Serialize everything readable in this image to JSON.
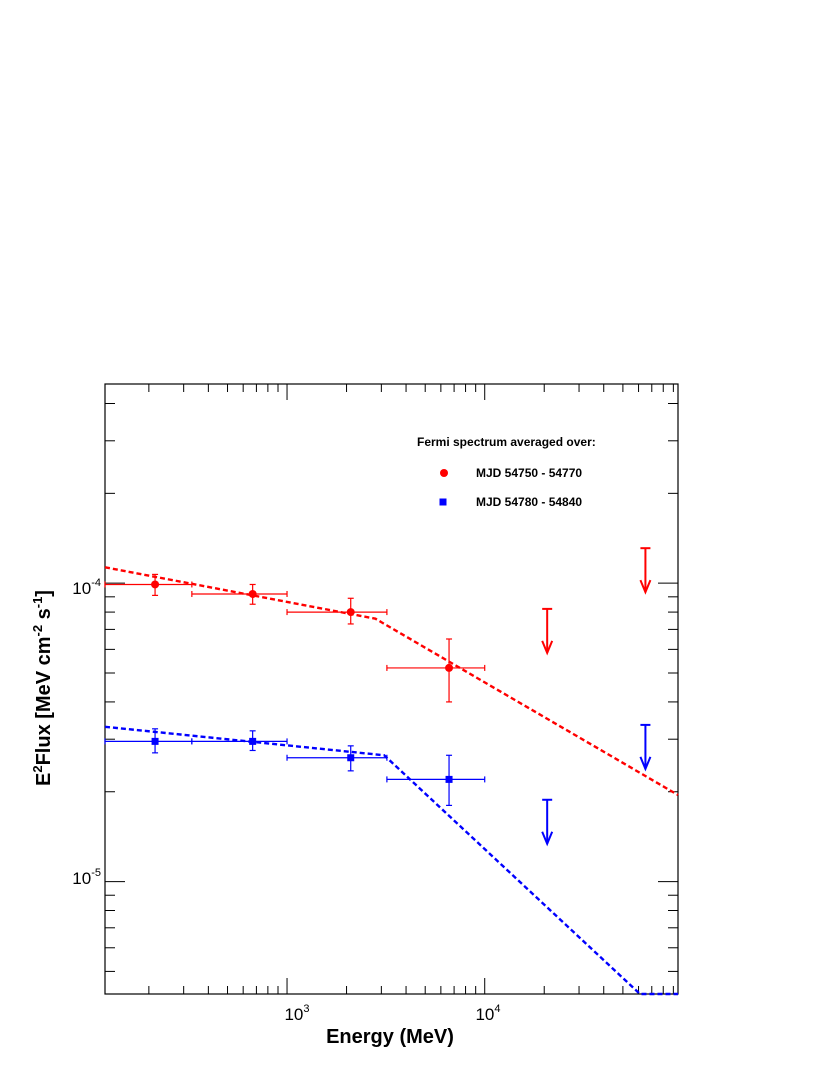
{
  "chart_data": {
    "type": "scatter",
    "xscale": "log",
    "yscale": "log",
    "xlim": [
      120,
      95000
    ],
    "ylim": [
      4.2e-06,
      0.000465
    ],
    "grid": false,
    "xlabel": "Energy (MeV)",
    "ylabel": {
      "base": "E",
      "sup1": "2",
      "mid": "Flux [MeV cm",
      "sup2": "-2",
      "mid2": " s",
      "sup3": "-1",
      "end": "]"
    },
    "x_ticks": [
      {
        "base": "10",
        "exp": "3"
      },
      {
        "base": "10",
        "exp": "4"
      }
    ],
    "y_ticks": [
      {
        "base": "10",
        "exp": "-4"
      },
      {
        "base": "10",
        "exp": "-5"
      }
    ],
    "legend": {
      "title": "Fermi spectrum averaged over:",
      "position": "top-right",
      "entries": [
        "MJD 54750 - 54770",
        "MJD 54780 - 54840"
      ]
    },
    "series": [
      {
        "name": "MJD 54750 - 54770",
        "color": "#ff0000",
        "marker": "circle",
        "points": [
          {
            "x": 215,
            "y": 9.9e-05,
            "xlo": 120,
            "xhi": 330,
            "ylo": 9.1e-05,
            "yhi": 0.000107
          },
          {
            "x": 670,
            "y": 9.2e-05,
            "xlo": 330,
            "xhi": 1000,
            "ylo": 8.5e-05,
            "yhi": 9.9e-05
          },
          {
            "x": 2100,
            "y": 8e-05,
            "xlo": 1000,
            "xhi": 3200,
            "ylo": 7.3e-05,
            "yhi": 8.9e-05
          },
          {
            "x": 6600,
            "y": 5.2e-05,
            "xlo": 3200,
            "xhi": 10000,
            "ylo": 4e-05,
            "yhi": 6.5e-05
          }
        ],
        "upper_limits": [
          {
            "x": 20700,
            "y": 8.2e-05
          },
          {
            "x": 65000,
            "y": 0.000131
          }
        ],
        "model_curve": [
          {
            "x": 120,
            "y": 0.000113
          },
          {
            "x": 2800,
            "y": 7.6e-05
          },
          {
            "x": 95000,
            "y": 1.95e-05
          }
        ]
      },
      {
        "name": "MJD 54780 - 54840",
        "color": "#0000ff",
        "marker": "square",
        "points": [
          {
            "x": 215,
            "y": 2.95e-05,
            "xlo": 120,
            "xhi": 330,
            "ylo": 2.7e-05,
            "yhi": 3.25e-05
          },
          {
            "x": 670,
            "y": 2.95e-05,
            "xlo": 330,
            "xhi": 1000,
            "ylo": 2.75e-05,
            "yhi": 3.2e-05
          },
          {
            "x": 2100,
            "y": 2.6e-05,
            "xlo": 1000,
            "xhi": 3200,
            "ylo": 2.35e-05,
            "yhi": 2.85e-05
          },
          {
            "x": 6600,
            "y": 2.2e-05,
            "xlo": 3200,
            "xhi": 10000,
            "ylo": 1.8e-05,
            "yhi": 2.65e-05
          }
        ],
        "upper_limits": [
          {
            "x": 20700,
            "y": 1.88e-05
          },
          {
            "x": 65000,
            "y": 3.35e-05
          }
        ],
        "model_curve": [
          {
            "x": 120,
            "y": 3.3e-05
          },
          {
            "x": 3100,
            "y": 2.65e-05
          },
          {
            "x": 61000,
            "y": 4.2e-06
          },
          {
            "x": 95000,
            "y": 4.2e-06
          }
        ]
      }
    ]
  }
}
